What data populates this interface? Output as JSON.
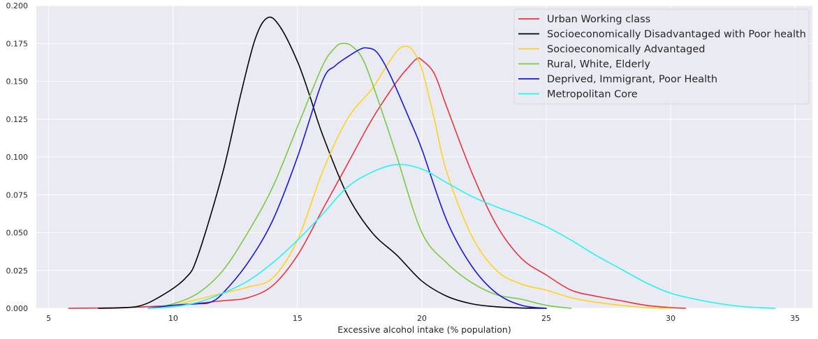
{
  "chart_data": {
    "type": "line",
    "title": "",
    "xlabel": "Excessive alcohol intake (% population)",
    "ylabel": "",
    "xlim": [
      4.5,
      35.7
    ],
    "ylim": [
      0,
      0.2
    ],
    "xticks": [
      5,
      10,
      15,
      20,
      25,
      30,
      35
    ],
    "yticks": [
      0.0,
      0.025,
      0.05,
      0.075,
      0.1,
      0.125,
      0.15,
      0.175,
      0.2
    ],
    "ytick_labels": [
      "0.000",
      "0.025",
      "0.050",
      "0.075",
      "0.100",
      "0.125",
      "0.150",
      "0.175",
      "0.200"
    ],
    "grid": true,
    "background": "#eaeaf2",
    "legend_position": "top-right",
    "series": [
      {
        "name": "Urban Working class",
        "color": "#e8343c",
        "x": [
          5.8,
          8,
          10,
          12,
          13,
          14,
          15,
          16,
          17,
          18,
          19,
          19.5,
          19.8,
          20,
          20.5,
          21,
          22,
          23,
          24,
          25,
          26,
          27,
          28,
          29,
          30,
          30.6
        ],
        "y": [
          0,
          0.0005,
          0.002,
          0.005,
          0.007,
          0.015,
          0.035,
          0.065,
          0.095,
          0.125,
          0.15,
          0.16,
          0.165,
          0.164,
          0.155,
          0.133,
          0.09,
          0.055,
          0.033,
          0.022,
          0.012,
          0.008,
          0.005,
          0.002,
          0.0005,
          0
        ]
      },
      {
        "name": "Socioeconomically Disadvantaged with Poor health",
        "color": "#000000",
        "x": [
          7,
          8.5,
          9.5,
          10.5,
          11,
          12,
          12.7,
          13.3,
          13.8,
          14.3,
          15,
          15.5,
          16,
          17,
          18,
          19,
          20,
          21,
          22,
          23,
          24,
          25
        ],
        "y": [
          0,
          0.001,
          0.008,
          0.02,
          0.035,
          0.09,
          0.14,
          0.178,
          0.192,
          0.186,
          0.163,
          0.14,
          0.115,
          0.075,
          0.05,
          0.035,
          0.018,
          0.008,
          0.003,
          0.001,
          0.0002,
          0
        ]
      },
      {
        "name": "Socioeconomically Advantaged",
        "color": "#ffd21f",
        "x": [
          9,
          10,
          11,
          12,
          13,
          14,
          15,
          16,
          17,
          18,
          18.5,
          19,
          19.3,
          19.6,
          20,
          20.5,
          21,
          22,
          23,
          24,
          25,
          26,
          27,
          28,
          29,
          30
        ],
        "y": [
          0,
          0.002,
          0.006,
          0.01,
          0.014,
          0.02,
          0.045,
          0.09,
          0.125,
          0.145,
          0.158,
          0.17,
          0.173,
          0.171,
          0.158,
          0.125,
          0.09,
          0.048,
          0.025,
          0.016,
          0.012,
          0.007,
          0.004,
          0.002,
          0.0005,
          0
        ]
      },
      {
        "name": "Rural, White, Elderly",
        "color": "#7ac943",
        "x": [
          9,
          10,
          11,
          12,
          13,
          14,
          15,
          16,
          16.5,
          16.8,
          17.2,
          17.7,
          18.5,
          19,
          20,
          21,
          22,
          23,
          24,
          25,
          26
        ],
        "y": [
          0,
          0.003,
          0.01,
          0.025,
          0.05,
          0.08,
          0.12,
          0.16,
          0.172,
          0.175,
          0.173,
          0.162,
          0.125,
          0.1,
          0.05,
          0.03,
          0.017,
          0.009,
          0.006,
          0.002,
          0
        ]
      },
      {
        "name": "Deprived, Immigrant, Poor Health",
        "color": "#1616e0",
        "x": [
          9,
          10,
          11,
          11.5,
          12,
          13,
          14,
          15,
          16,
          16.5,
          17,
          17.5,
          17.8,
          18.2,
          18.7,
          19.5,
          20,
          21,
          22,
          23,
          24,
          25
        ],
        "y": [
          0,
          0.002,
          0.003,
          0.004,
          0.01,
          0.03,
          0.058,
          0.1,
          0.15,
          0.16,
          0.166,
          0.171,
          0.172,
          0.169,
          0.155,
          0.125,
          0.105,
          0.058,
          0.028,
          0.01,
          0.002,
          0
        ]
      },
      {
        "name": "Metropolitan Core",
        "color": "#1ff5f5",
        "x": [
          9,
          10,
          11,
          12,
          13,
          14,
          15,
          16,
          17,
          18,
          19,
          20,
          21,
          22,
          23,
          24,
          25,
          26,
          27,
          28,
          29,
          30,
          31,
          32,
          33,
          34.2
        ],
        "y": [
          0,
          0.001,
          0.004,
          0.01,
          0.018,
          0.03,
          0.045,
          0.062,
          0.08,
          0.09,
          0.095,
          0.092,
          0.083,
          0.074,
          0.067,
          0.061,
          0.054,
          0.045,
          0.035,
          0.026,
          0.017,
          0.01,
          0.006,
          0.003,
          0.001,
          0
        ]
      }
    ]
  }
}
